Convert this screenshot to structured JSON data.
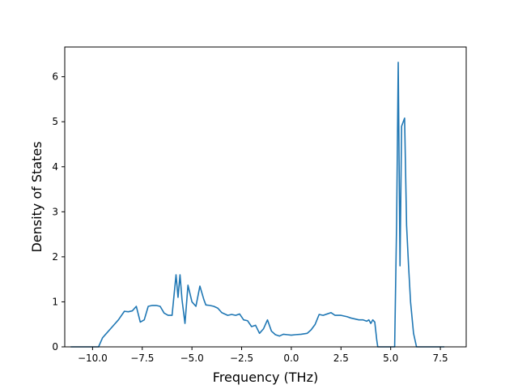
{
  "chart_data": {
    "type": "line",
    "title": "",
    "xlabel": "Frequency (THz)",
    "ylabel": "Density of States",
    "xlim": [
      -11.4,
      8.8
    ],
    "ylim": [
      0,
      6.66
    ],
    "grid": false,
    "legend": "none",
    "line_color": "#1f77b4",
    "x_ticks": [
      -10.0,
      -7.5,
      -5.0,
      -2.5,
      0.0,
      2.5,
      5.0,
      7.5
    ],
    "x_tick_labels": [
      "−10.0",
      "−7.5",
      "−5.0",
      "−2.5",
      "0.0",
      "2.5",
      "5.0",
      "7.5"
    ],
    "y_ticks": [
      0,
      1,
      2,
      3,
      4,
      5,
      6
    ],
    "y_tick_labels": [
      "0",
      "1",
      "2",
      "3",
      "4",
      "5",
      "6"
    ],
    "series": [
      {
        "x": [
          -11.1,
          -9.7,
          -9.5,
          -9.3,
          -9.0,
          -8.7,
          -8.4,
          -8.2,
          -8.0,
          -7.8,
          -7.6,
          -7.4,
          -7.2,
          -7.0,
          -6.8,
          -6.6,
          -6.4,
          -6.2,
          -6.0,
          -5.8,
          -5.7,
          -5.6,
          -5.5,
          -5.35,
          -5.2,
          -5.0,
          -4.8,
          -4.6,
          -4.4,
          -4.3,
          -4.1,
          -3.9,
          -3.7,
          -3.5,
          -3.2,
          -3.0,
          -2.8,
          -2.6,
          -2.4,
          -2.2,
          -2.0,
          -1.8,
          -1.6,
          -1.4,
          -1.2,
          -1.0,
          -0.8,
          -0.6,
          -0.4,
          -0.2,
          0.0,
          0.2,
          0.5,
          0.8,
          1.0,
          1.2,
          1.4,
          1.6,
          1.8,
          2.0,
          2.2,
          2.5,
          2.8,
          3.0,
          3.2,
          3.4,
          3.6,
          3.8,
          3.9,
          4.0,
          4.1,
          4.2,
          4.3,
          4.35,
          4.5,
          5.2,
          5.3,
          5.38,
          5.47,
          5.55,
          5.7,
          5.8,
          5.9,
          6.0,
          6.15,
          6.3,
          7.7
        ],
        "y": [
          0,
          0,
          0.2,
          0.3,
          0.45,
          0.6,
          0.79,
          0.78,
          0.8,
          0.9,
          0.55,
          0.6,
          0.9,
          0.92,
          0.92,
          0.9,
          0.75,
          0.7,
          0.7,
          1.6,
          1.1,
          1.6,
          1.05,
          0.52,
          1.37,
          1.0,
          0.9,
          1.35,
          1.05,
          0.93,
          0.92,
          0.9,
          0.86,
          0.76,
          0.7,
          0.72,
          0.7,
          0.73,
          0.6,
          0.58,
          0.45,
          0.48,
          0.3,
          0.4,
          0.6,
          0.35,
          0.27,
          0.24,
          0.28,
          0.27,
          0.26,
          0.27,
          0.28,
          0.3,
          0.38,
          0.5,
          0.72,
          0.7,
          0.73,
          0.76,
          0.7,
          0.7,
          0.67,
          0.64,
          0.62,
          0.6,
          0.6,
          0.57,
          0.6,
          0.52,
          0.6,
          0.55,
          0.15,
          0,
          0,
          0,
          2.8,
          6.32,
          1.8,
          4.9,
          5.08,
          2.7,
          1.8,
          1.0,
          0.3,
          0,
          0
        ]
      }
    ]
  }
}
